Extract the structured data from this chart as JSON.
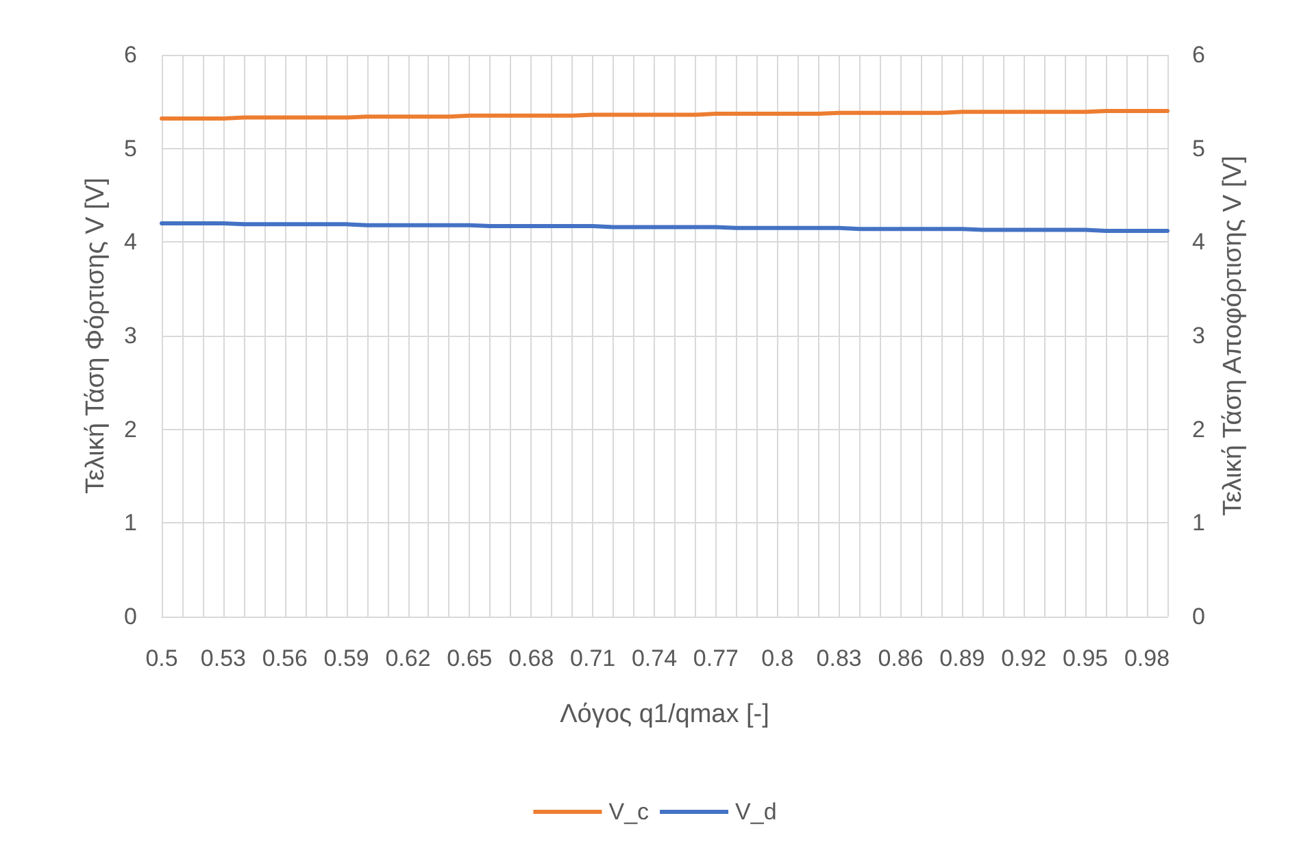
{
  "chart_data": {
    "type": "line",
    "xlabel": "Λόγος q1/qmax [-]",
    "ylabel": "Τελική Τάση Φόρτισης V [V]",
    "y2label": "Τελική Τάση Αποφόρτισης V [V]",
    "categories": [
      "0.5",
      null,
      null,
      "0.53",
      null,
      null,
      "0.56",
      null,
      null,
      "0.59",
      null,
      null,
      "0.62",
      null,
      null,
      "0.65",
      null,
      null,
      "0.68",
      null,
      null,
      "0.71",
      null,
      null,
      "0.74",
      null,
      null,
      "0.77",
      null,
      null,
      "0.8",
      null,
      null,
      "0.83",
      null,
      null,
      "0.86",
      null,
      null,
      "0.89",
      null,
      null,
      "0.92",
      null,
      null,
      "0.95",
      null,
      null,
      "0.98",
      null
    ],
    "series": [
      {
        "name": "V_c",
        "color": "#ed7d31",
        "values": [
          5.32,
          5.32,
          5.32,
          5.32,
          5.33,
          5.33,
          5.33,
          5.33,
          5.33,
          5.33,
          5.34,
          5.34,
          5.34,
          5.34,
          5.34,
          5.35,
          5.35,
          5.35,
          5.35,
          5.35,
          5.35,
          5.36,
          5.36,
          5.36,
          5.36,
          5.36,
          5.36,
          5.37,
          5.37,
          5.37,
          5.37,
          5.37,
          5.37,
          5.38,
          5.38,
          5.38,
          5.38,
          5.38,
          5.38,
          5.39,
          5.39,
          5.39,
          5.39,
          5.39,
          5.39,
          5.39,
          5.4,
          5.4,
          5.4,
          5.4
        ]
      },
      {
        "name": "V_d",
        "color": "#4472c4",
        "values": [
          4.2,
          4.2,
          4.2,
          4.2,
          4.19,
          4.19,
          4.19,
          4.19,
          4.19,
          4.19,
          4.18,
          4.18,
          4.18,
          4.18,
          4.18,
          4.18,
          4.17,
          4.17,
          4.17,
          4.17,
          4.17,
          4.17,
          4.16,
          4.16,
          4.16,
          4.16,
          4.16,
          4.16,
          4.15,
          4.15,
          4.15,
          4.15,
          4.15,
          4.15,
          4.14,
          4.14,
          4.14,
          4.14,
          4.14,
          4.14,
          4.13,
          4.13,
          4.13,
          4.13,
          4.13,
          4.13,
          4.12,
          4.12,
          4.12,
          4.12
        ]
      }
    ],
    "ylim": [
      0,
      6
    ],
    "yticks": [
      0,
      1,
      2,
      3,
      4,
      5,
      6
    ],
    "y2lim": [
      0,
      6
    ],
    "y2ticks": [
      0,
      1,
      2,
      3,
      4,
      5,
      6
    ],
    "grid": true,
    "legend": "bottom",
    "marker": "none",
    "line_style": "solid"
  }
}
